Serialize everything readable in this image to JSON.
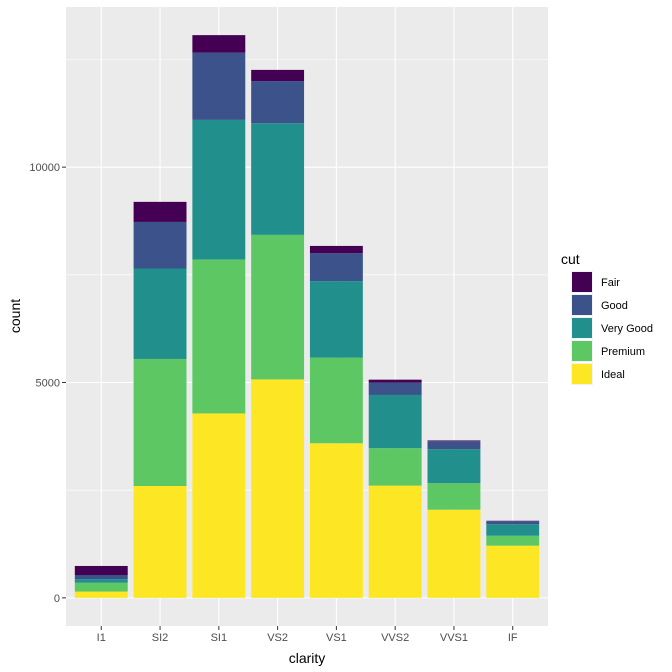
{
  "chart_data": {
    "type": "bar",
    "stacked": true,
    "xlabel": "clarity",
    "ylabel": "count",
    "categories": [
      "I1",
      "SI2",
      "SI1",
      "VS2",
      "VS1",
      "VVS2",
      "VVS1",
      "IF"
    ],
    "ylim": [
      -653,
      13718
    ],
    "yticks": [
      0,
      5000,
      10000
    ],
    "grid": true,
    "legend": {
      "title": "cut",
      "placement": "right"
    },
    "series": [
      {
        "name": "Fair",
        "color": "#440154",
        "values": [
          210,
          466,
          408,
          261,
          170,
          69,
          17,
          9
        ]
      },
      {
        "name": "Good",
        "color": "#3B528B",
        "values": [
          96,
          1081,
          1560,
          978,
          648,
          286,
          186,
          71
        ]
      },
      {
        "name": "Very Good",
        "color": "#21908C",
        "values": [
          84,
          2100,
          3240,
          2591,
          1775,
          1235,
          789,
          268
        ]
      },
      {
        "name": "Premium",
        "color": "#5DC863",
        "values": [
          205,
          2949,
          3575,
          3357,
          1989,
          870,
          616,
          230
        ]
      },
      {
        "name": "Ideal",
        "color": "#FDE725",
        "values": [
          146,
          2598,
          4282,
          5071,
          3589,
          2606,
          2047,
          1212
        ]
      }
    ]
  }
}
